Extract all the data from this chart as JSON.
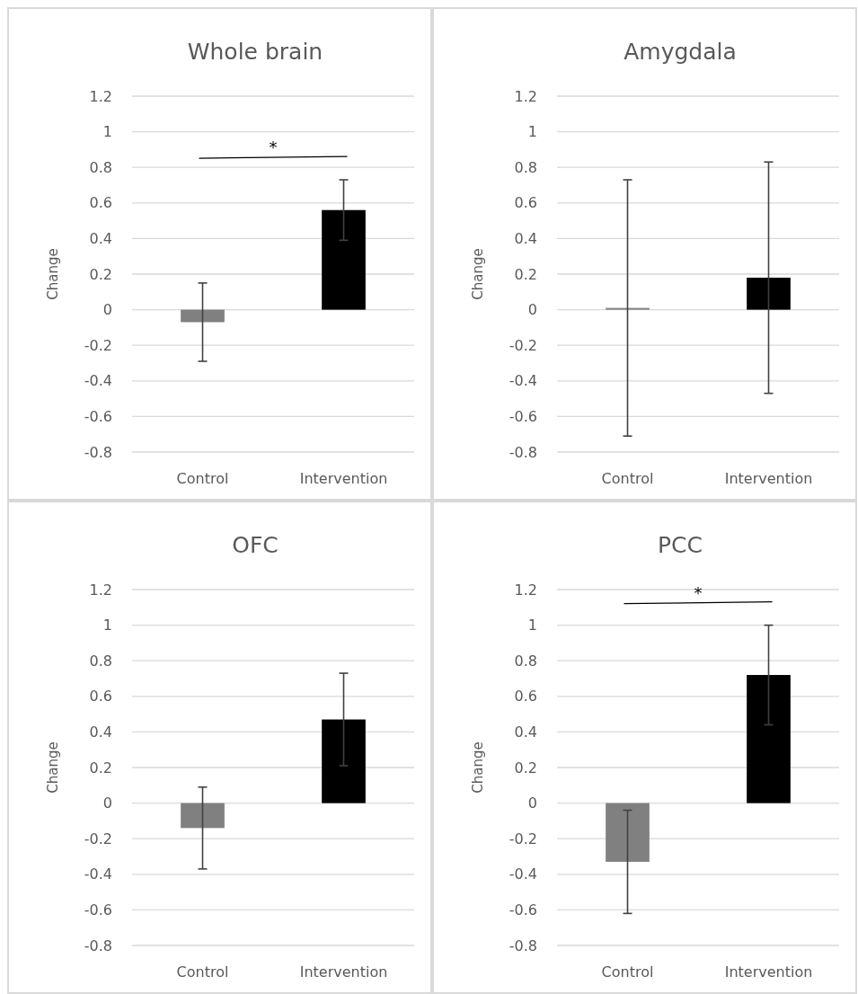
{
  "chart_data": [
    {
      "type": "bar",
      "title": "Whole brain",
      "ylabel": "Change",
      "categories": [
        "Control",
        "Intervention"
      ],
      "values": [
        -0.07,
        0.56
      ],
      "colors": [
        "#808080",
        "#000000"
      ],
      "errors": [
        0.22,
        0.17
      ],
      "ylim": [
        -0.8,
        1.2
      ],
      "yticks": [
        -0.8,
        -0.6,
        -0.4,
        -0.2,
        0,
        0.2,
        0.4,
        0.6,
        0.8,
        1,
        1.2
      ],
      "grid": "y",
      "annotations": [
        "*"
      ]
    },
    {
      "type": "bar",
      "title": "Amygdala",
      "ylabel": "Change",
      "categories": [
        "Control",
        "Intervention"
      ],
      "values": [
        0.01,
        0.18
      ],
      "colors": [
        "#808080",
        "#000000"
      ],
      "errors": [
        0.72,
        0.65
      ],
      "ylim": [
        -0.8,
        1.2
      ],
      "yticks": [
        -0.8,
        -0.6,
        -0.4,
        -0.2,
        0,
        0.2,
        0.4,
        0.6,
        0.8,
        1,
        1.2
      ],
      "grid": "y"
    },
    {
      "type": "bar",
      "title": "OFC",
      "ylabel": "Change",
      "categories": [
        "Control",
        "Intervention"
      ],
      "values": [
        -0.14,
        0.47
      ],
      "colors": [
        "#808080",
        "#000000"
      ],
      "errors": [
        0.23,
        0.26
      ],
      "ylim": [
        -0.8,
        1.2
      ],
      "yticks": [
        -0.8,
        -0.6,
        -0.4,
        -0.2,
        0,
        0.2,
        0.4,
        0.6,
        0.8,
        1,
        1.2
      ],
      "grid": "y"
    },
    {
      "type": "bar",
      "title": "PCC",
      "ylabel": "Change",
      "categories": [
        "Control",
        "Intervention"
      ],
      "values": [
        -0.33,
        0.72
      ],
      "colors": [
        "#808080",
        "#000000"
      ],
      "errors": [
        0.29,
        0.28
      ],
      "ylim": [
        -0.8,
        1.2
      ],
      "yticks": [
        -0.8,
        -0.6,
        -0.4,
        -0.2,
        0,
        0.2,
        0.4,
        0.6,
        0.8,
        1,
        1.2
      ],
      "grid": "y",
      "annotations": [
        "*"
      ]
    }
  ]
}
